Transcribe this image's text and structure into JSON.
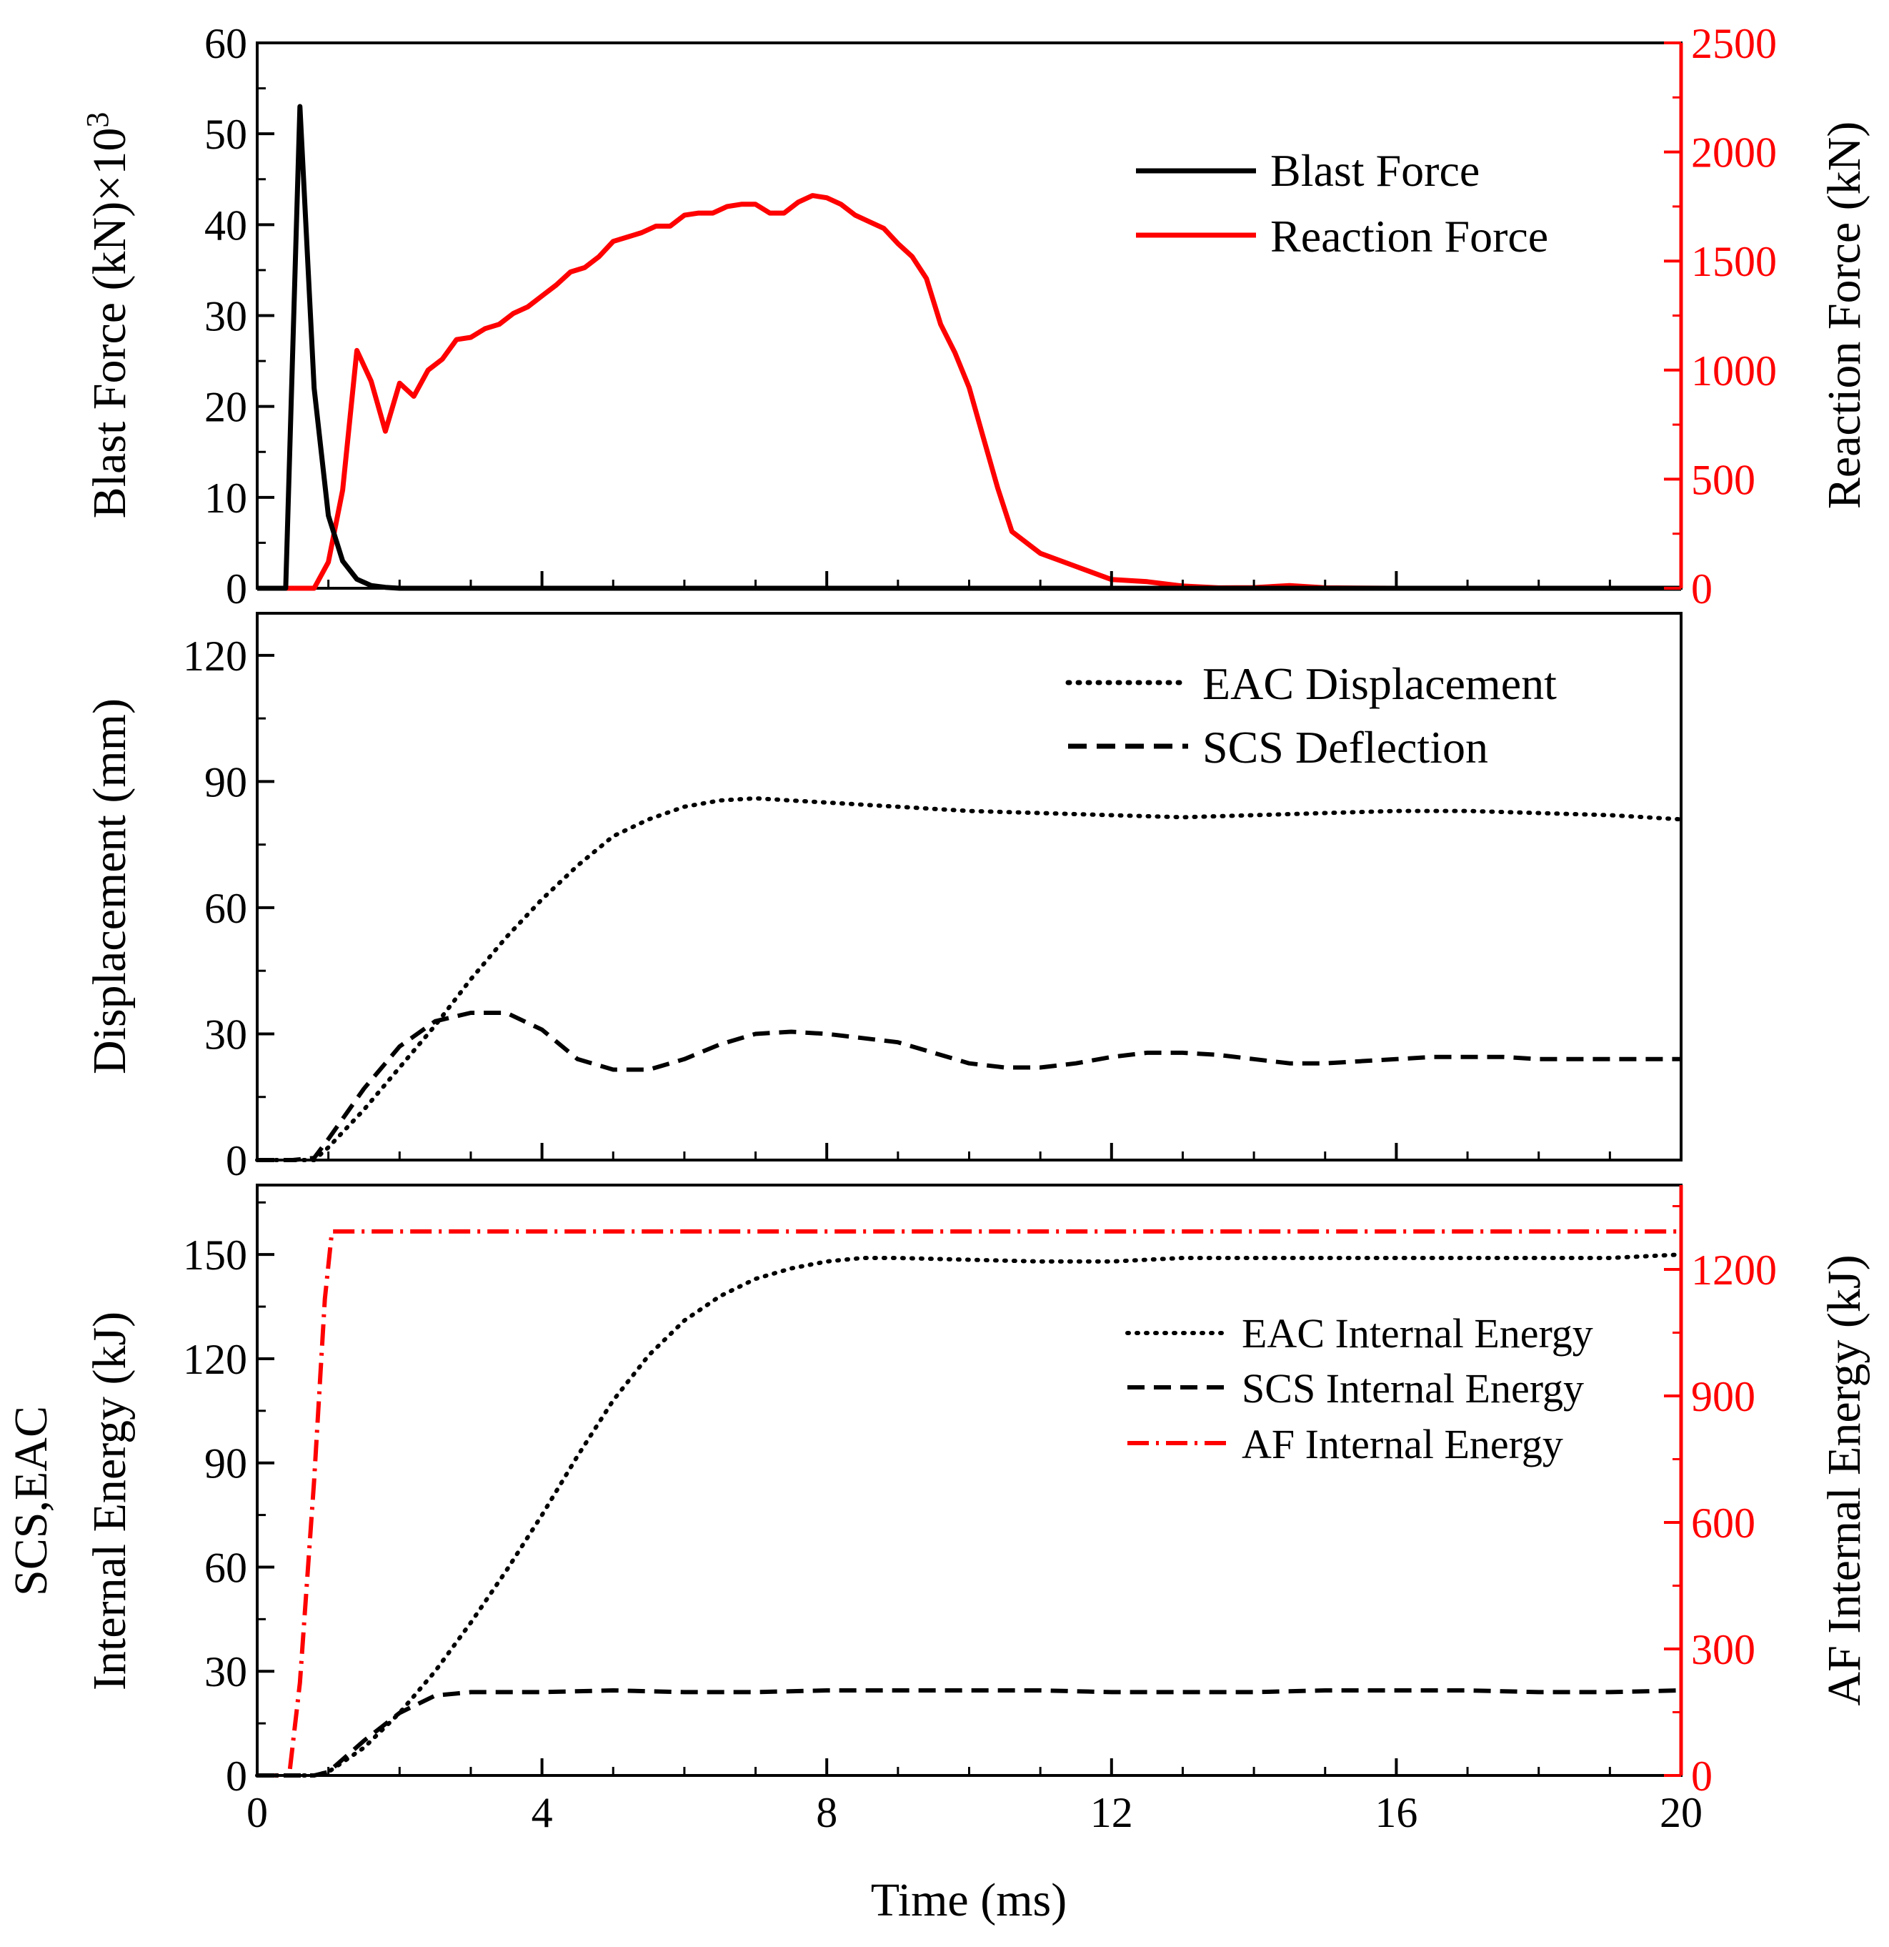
{
  "figure": {
    "xlabel": "Time (ms)",
    "x_ticks": [
      "0",
      "4",
      "8",
      "12",
      "16",
      "20"
    ]
  },
  "colors": {
    "black": "#000000",
    "red": "#ff0000"
  },
  "chart_data": [
    {
      "type": "line",
      "panel": "top",
      "xlim": [
        0,
        20
      ],
      "ylim_left": [
        0,
        60
      ],
      "ylim_right": [
        0,
        2500
      ],
      "ylabel_left": "Blast Force (kN)×10",
      "ylabel_left_sup": "3",
      "ylabel_right": "Reaction Force (kN)",
      "y_ticks_left": [
        "0",
        "10",
        "20",
        "30",
        "40",
        "50",
        "60"
      ],
      "y_ticks_right": [
        "0",
        "500",
        "1000",
        "1500",
        "2000",
        "2500"
      ],
      "legend_placement": "top-right",
      "series": [
        {
          "name": "Blast Force",
          "axis": "left",
          "style": "solid",
          "color": "#000000",
          "x": [
            0,
            0.4,
            0.6,
            0.8,
            1.0,
            1.2,
            1.4,
            1.6,
            1.8,
            2.0,
            2.5,
            20
          ],
          "y": [
            0,
            0,
            53,
            22,
            8,
            3,
            1,
            0.3,
            0.1,
            0,
            0,
            0
          ]
        },
        {
          "name": "Reaction Force",
          "axis": "right",
          "style": "solid",
          "color": "#ff0000",
          "x": [
            0,
            0.8,
            1.0,
            1.2,
            1.4,
            1.6,
            1.8,
            2.0,
            2.2,
            2.4,
            2.6,
            2.8,
            3.0,
            3.2,
            3.4,
            3.6,
            3.8,
            4.0,
            4.2,
            4.4,
            4.6,
            4.8,
            5.0,
            5.2,
            5.4,
            5.6,
            5.8,
            6.0,
            6.2,
            6.4,
            6.6,
            6.8,
            7.0,
            7.2,
            7.4,
            7.6,
            7.8,
            8.0,
            8.2,
            8.4,
            8.6,
            8.8,
            9.0,
            9.2,
            9.4,
            9.6,
            9.8,
            10.0,
            10.2,
            10.4,
            10.6,
            10.8,
            11.0,
            11.5,
            12.0,
            12.5,
            13.0,
            13.5,
            14.0,
            14.5,
            15.0,
            16.0,
            18.0,
            20.0
          ],
          "y": [
            0,
            0,
            120,
            450,
            1090,
            950,
            720,
            940,
            880,
            1000,
            1050,
            1140,
            1150,
            1190,
            1210,
            1260,
            1290,
            1340,
            1390,
            1450,
            1470,
            1520,
            1590,
            1610,
            1630,
            1660,
            1660,
            1710,
            1720,
            1720,
            1750,
            1760,
            1760,
            1720,
            1720,
            1770,
            1800,
            1790,
            1760,
            1710,
            1680,
            1650,
            1580,
            1520,
            1420,
            1210,
            1080,
            920,
            690,
            460,
            260,
            210,
            160,
            100,
            40,
            30,
            10,
            2,
            3,
            12,
            2,
            0,
            0,
            0
          ]
        }
      ]
    },
    {
      "type": "line",
      "panel": "middle",
      "xlim": [
        0,
        20
      ],
      "ylim": [
        0,
        130
      ],
      "ylabel": "Displacement (mm)",
      "y_ticks": [
        "0",
        "30",
        "60",
        "90",
        "120"
      ],
      "legend_placement": "top-right",
      "series": [
        {
          "name": "EAC Displacement",
          "style": "dotted",
          "color": "#000000",
          "x": [
            0,
            0.5,
            0.8,
            1.0,
            1.5,
            2.0,
            2.5,
            3.0,
            3.5,
            4.0,
            4.5,
            5.0,
            5.5,
            6.0,
            6.5,
            7.0,
            7.5,
            8.0,
            9.0,
            10.0,
            11.0,
            12.0,
            13.0,
            14.0,
            15.0,
            16.0,
            17.0,
            18.0,
            19.0,
            20.0
          ],
          "y": [
            0,
            0,
            0,
            3,
            12,
            22,
            32,
            43,
            53,
            62,
            70,
            77,
            81,
            84,
            85.5,
            86,
            85.5,
            85,
            84,
            83,
            82.5,
            82,
            81.5,
            82,
            82.5,
            83,
            83,
            82.5,
            82,
            81
          ]
        },
        {
          "name": "SCS Deflection",
          "style": "dashed",
          "color": "#000000",
          "x": [
            0,
            0.5,
            0.8,
            1.0,
            1.5,
            2.0,
            2.5,
            3.0,
            3.5,
            4.0,
            4.5,
            5.0,
            5.5,
            6.0,
            6.5,
            7.0,
            7.5,
            8.0,
            8.5,
            9.0,
            9.5,
            10.0,
            10.5,
            11.0,
            11.5,
            12.0,
            12.5,
            13.0,
            13.5,
            14.0,
            14.5,
            15.0,
            15.5,
            16.0,
            16.5,
            17.0,
            17.5,
            18.0,
            18.5,
            19.0,
            19.5,
            20.0
          ],
          "y": [
            0,
            0,
            0.5,
            5,
            17,
            27,
            33,
            35,
            35,
            31,
            24,
            21.5,
            21.5,
            24,
            27.5,
            30,
            30.5,
            30,
            29,
            28,
            25.5,
            23,
            22,
            22,
            23,
            24.5,
            25.5,
            25.5,
            25,
            24,
            23,
            23,
            23.5,
            24,
            24.5,
            24.5,
            24.5,
            24,
            24,
            24,
            24,
            24
          ]
        }
      ]
    },
    {
      "type": "line",
      "panel": "bottom",
      "xlim": [
        0,
        20
      ],
      "ylim_left": [
        0,
        170
      ],
      "ylim_right": [
        0,
        1400
      ],
      "ylabel_left": "Internal Energy (kJ)",
      "ylabel_left_2": "SCS,EAC",
      "ylabel_right": "AF Internal Energy (kJ)",
      "y_ticks_left": [
        "0",
        "30",
        "60",
        "90",
        "120",
        "150"
      ],
      "y_ticks_right": [
        "0",
        "300",
        "600",
        "900",
        "1200"
      ],
      "legend_placement": "right",
      "series": [
        {
          "name": "EAC Internal Energy",
          "axis": "left",
          "style": "dotted",
          "color": "#000000",
          "x": [
            0,
            0.8,
            1.0,
            1.5,
            2.0,
            2.5,
            3.0,
            3.5,
            4.0,
            4.5,
            5.0,
            5.5,
            6.0,
            6.5,
            7.0,
            7.5,
            8.0,
            8.5,
            9.0,
            10.0,
            11.0,
            12.0,
            13.0,
            14.0,
            15.0,
            16.0,
            17.0,
            18.0,
            19.0,
            20.0
          ],
          "y": [
            0,
            0,
            1,
            8,
            18,
            30,
            44,
            59,
            75,
            92,
            108,
            121,
            131,
            138,
            143,
            146,
            148,
            149,
            149,
            148.5,
            148,
            148,
            149,
            149,
            149,
            149,
            149,
            149,
            149,
            150
          ]
        },
        {
          "name": "SCS Internal Energy",
          "axis": "left",
          "style": "dashed",
          "color": "#000000",
          "x": [
            0,
            0.8,
            1.0,
            1.5,
            2.0,
            2.5,
            3.0,
            4.0,
            5.0,
            6.0,
            7.0,
            8.0,
            9.0,
            10.0,
            11.0,
            12.0,
            13.0,
            14.0,
            15.0,
            16.0,
            17.0,
            18.0,
            19.0,
            20.0
          ],
          "y": [
            0,
            0,
            1,
            10,
            18,
            23,
            24,
            24,
            24.5,
            24,
            24,
            24.5,
            24.5,
            24.5,
            24.5,
            24,
            24,
            24,
            24.5,
            24.5,
            24.5,
            24,
            24,
            24.5
          ]
        },
        {
          "name": "AF Internal Energy",
          "axis": "right",
          "style": "dashdot",
          "color": "#ff0000",
          "x": [
            0,
            0.45,
            0.6,
            0.8,
            0.95,
            1.05,
            1.2,
            20
          ],
          "y": [
            0,
            0,
            220,
            700,
            1130,
            1290,
            1290,
            1290
          ]
        }
      ]
    }
  ]
}
